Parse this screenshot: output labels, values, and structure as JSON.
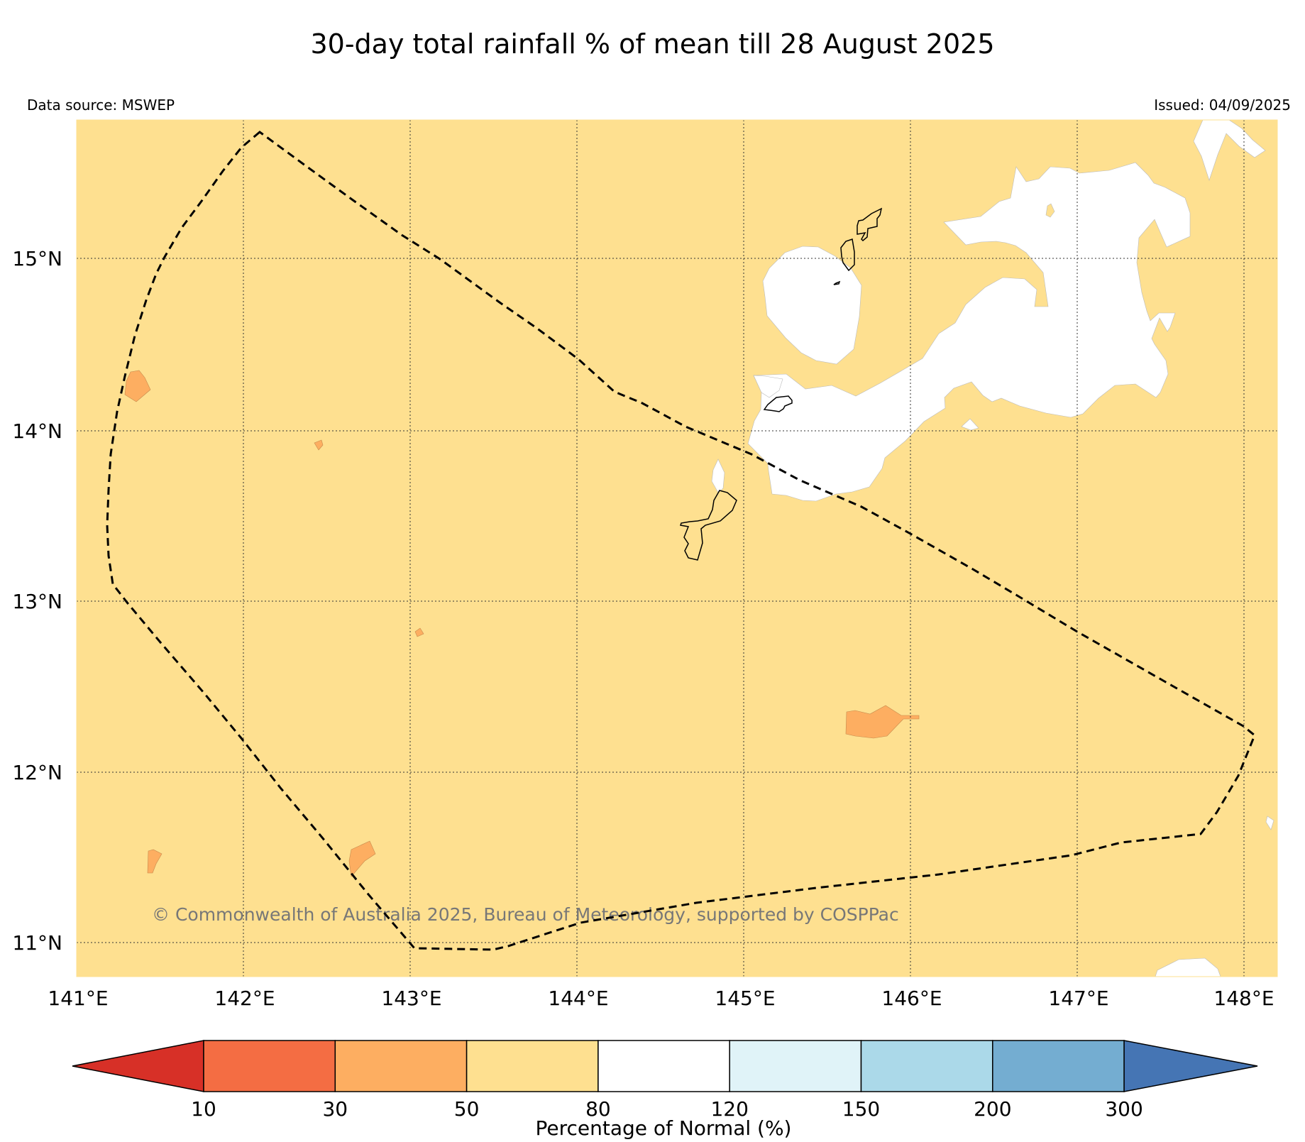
{
  "title": "30-day total rainfall % of mean till 28 August 2025",
  "data_source": "Data source: MSWEP",
  "issued": "Issued: 04/09/2025",
  "copyright": "© Commonwealth of Australia 2025, Bureau of Meteorology, supported by COSPPac",
  "lat_ticks": [
    "15°N",
    "14°N",
    "13°N",
    "12°N",
    "11°N"
  ],
  "lon_ticks": [
    "141°E",
    "142°E",
    "143°E",
    "144°E",
    "145°E",
    "146°E",
    "147°E",
    "148°E"
  ],
  "map_extent": {
    "lon_min": 141.0,
    "lon_max": 148.2,
    "lat_min": 10.8,
    "lat_max": 15.8
  },
  "colorbar": {
    "label": "Percentage of Normal (%)",
    "tick_labels": [
      "10",
      "30",
      "50",
      "80",
      "120",
      "150",
      "200",
      "300"
    ],
    "colors": [
      "#d73027",
      "#f46d43",
      "#fdae61",
      "#fee090",
      "#ffffff",
      "#e0f3f8",
      "#abd9e9",
      "#74add1",
      "#4575b4"
    ]
  },
  "colors": {
    "background_category": "#fee090",
    "dry_patch": "#fdae61",
    "normal_patch": "#ffffff"
  }
}
